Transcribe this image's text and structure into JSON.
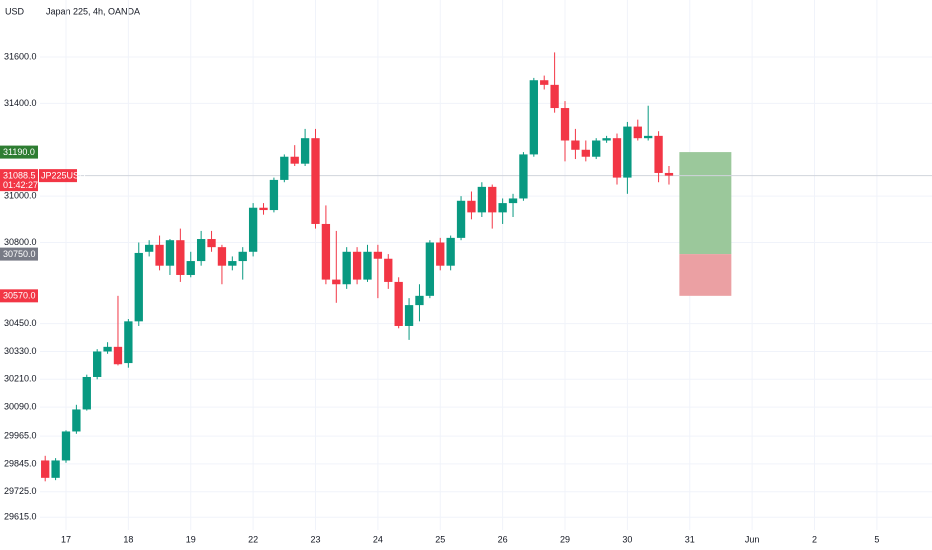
{
  "chart_data": {
    "type": "candlestick",
    "title": "Japan 225, 4h, OANDA",
    "currency": "USD",
    "up_color": "#089981",
    "down_color": "#f23645",
    "grid": true,
    "ylim": [
      29560,
      31846
    ],
    "xlim": [
      -0.5,
      85.3
    ],
    "yticks": [
      {
        "value": 31600,
        "label": "31600.0"
      },
      {
        "value": 31400,
        "label": "31400.0"
      },
      {
        "value": 31000,
        "label": "31000.0"
      },
      {
        "value": 30800,
        "label": "30800.0"
      },
      {
        "value": 30450,
        "label": "30450.0"
      },
      {
        "value": 30330,
        "label": "30330.0"
      },
      {
        "value": 30210,
        "label": "30210.0"
      },
      {
        "value": 30090,
        "label": "30090.0"
      },
      {
        "value": 29965,
        "label": "29965.0"
      },
      {
        "value": 29845,
        "label": "29845.0"
      },
      {
        "value": 29725,
        "label": "29725.0"
      },
      {
        "value": 29615,
        "label": "29615.0"
      }
    ],
    "xticks": [
      {
        "value": 2,
        "label": "17"
      },
      {
        "value": 8,
        "label": "18"
      },
      {
        "value": 14,
        "label": "19"
      },
      {
        "value": 20,
        "label": "22"
      },
      {
        "value": 26,
        "label": "23"
      },
      {
        "value": 32,
        "label": "24"
      },
      {
        "value": 38,
        "label": "25"
      },
      {
        "value": 44,
        "label": "26"
      },
      {
        "value": 50,
        "label": "29"
      },
      {
        "value": 56,
        "label": "30"
      },
      {
        "value": 62,
        "label": "31"
      },
      {
        "value": 68,
        "label": "Jun"
      },
      {
        "value": 74,
        "label": "2"
      },
      {
        "value": 80,
        "label": "5"
      }
    ],
    "open": [
      29860,
      29785,
      29860,
      29985,
      30080,
      30220,
      30330,
      30350,
      30280,
      30460,
      30760,
      30790,
      30700,
      30810,
      30660,
      30720,
      30815,
      30780,
      30700,
      30720,
      30760,
      30950,
      30940,
      31070,
      31170,
      31140,
      31250,
      30880,
      30640,
      30620,
      30760,
      30640,
      30760,
      30730,
      30630,
      30440,
      30530,
      30570,
      30800,
      30700,
      30820,
      30980,
      30930,
      31040,
      30930,
      30970,
      30990,
      31180,
      31500,
      31480,
      31380,
      31240,
      31200,
      31170,
      31240,
      31250,
      31080,
      31300,
      31250,
      31260,
      31100
    ],
    "high": [
      29880,
      29870,
      29990,
      30100,
      30230,
      30340,
      30370,
      30570,
      30470,
      30800,
      30810,
      30830,
      30815,
      30860,
      30760,
      30850,
      30850,
      30790,
      30740,
      30780,
      30970,
      30970,
      31080,
      31180,
      31220,
      31290,
      31290,
      30960,
      30850,
      30780,
      30780,
      30790,
      30790,
      30750,
      30650,
      30560,
      30620,
      30810,
      30820,
      30830,
      31000,
      31020,
      31060,
      31050,
      30990,
      31010,
      31190,
      31510,
      31520,
      31620,
      31410,
      31290,
      31240,
      31250,
      31260,
      31270,
      31320,
      31330,
      31390,
      31280,
      31130
    ],
    "low": [
      29770,
      29775,
      29850,
      29975,
      30075,
      30210,
      30320,
      30270,
      30260,
      30440,
      30740,
      30680,
      30660,
      30630,
      30650,
      30700,
      30760,
      30620,
      30680,
      30640,
      30740,
      30920,
      30930,
      31060,
      31130,
      31130,
      30860,
      30620,
      30540,
      30600,
      30620,
      30630,
      30560,
      30600,
      30430,
      30380,
      30460,
      30560,
      30680,
      30680,
      30810,
      30900,
      30910,
      30860,
      30880,
      30910,
      30980,
      31170,
      31460,
      31360,
      31150,
      31160,
      31150,
      31160,
      31230,
      31050,
      31010,
      31240,
      31240,
      31060,
      31050
    ],
    "close": [
      29785,
      29860,
      29985,
      30080,
      30220,
      30330,
      30350,
      30275,
      30460,
      30755,
      30790,
      30700,
      30810,
      30660,
      30720,
      30815,
      30780,
      30700,
      30720,
      30760,
      30950,
      30940,
      31070,
      31170,
      31140,
      31250,
      30880,
      30640,
      30620,
      30760,
      30640,
      30760,
      30730,
      30630,
      30440,
      30530,
      30570,
      30800,
      30700,
      30820,
      30980,
      30930,
      31040,
      30930,
      30970,
      30990,
      31180,
      31500,
      31480,
      31380,
      31240,
      31200,
      31170,
      31240,
      31250,
      31080,
      31300,
      31250,
      31260,
      31100,
      31088.5
    ],
    "last_price": {
      "value": 31088.5,
      "label": "31088.5",
      "symbol": "JP225USD",
      "countdown": "01:42:27",
      "color": "#f23645"
    },
    "price_labels": [
      {
        "value": 31190,
        "label": "31190.0",
        "color": "#2e7d32"
      },
      {
        "value": 30750,
        "label": "30750.0",
        "color": "#787b86"
      },
      {
        "value": 30570,
        "label": "30570.0",
        "color": "#f23645"
      }
    ],
    "position": {
      "target": 31190,
      "entry": 30750,
      "stop": 30570,
      "profit_color": "#9bc89b",
      "loss_color": "#eba0a3"
    }
  }
}
